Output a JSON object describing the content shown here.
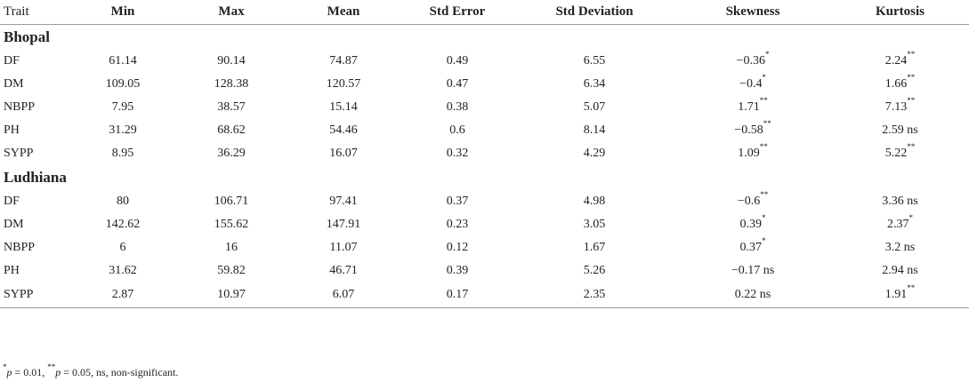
{
  "columns": [
    "Trait",
    "Min",
    "Max",
    "Mean",
    "Std Error",
    "Std Deviation",
    "Skewness",
    "Kurtosis"
  ],
  "groups": [
    {
      "name": "Bhopal",
      "rows": [
        {
          "trait": "DF",
          "min": "61.14",
          "max": "90.14",
          "mean": "74.87",
          "std_error": "0.49",
          "std_dev": "6.55",
          "skew": "−0.36",
          "skew_sig": "*",
          "kurt": "2.24",
          "kurt_sig": "**"
        },
        {
          "trait": "DM",
          "min": "109.05",
          "max": "128.38",
          "mean": "120.57",
          "std_error": "0.47",
          "std_dev": "6.34",
          "skew": "−0.4",
          "skew_sig": "*",
          "kurt": "1.66",
          "kurt_sig": "**"
        },
        {
          "trait": "NBPP",
          "min": "7.95",
          "max": "38.57",
          "mean": "15.14",
          "std_error": "0.38",
          "std_dev": "5.07",
          "skew": "1.71",
          "skew_sig": "**",
          "kurt": "7.13",
          "kurt_sig": "**"
        },
        {
          "trait": "PH",
          "min": "31.29",
          "max": "68.62",
          "mean": "54.46",
          "std_error": "0.6",
          "std_dev": "8.14",
          "skew": "−0.58",
          "skew_sig": "**",
          "kurt": "2.59 ns",
          "kurt_sig": ""
        },
        {
          "trait": "SYPP",
          "min": "8.95",
          "max": "36.29",
          "mean": "16.07",
          "std_error": "0.32",
          "std_dev": "4.29",
          "skew": "1.09",
          "skew_sig": "**",
          "kurt": "5.22",
          "kurt_sig": "**"
        }
      ]
    },
    {
      "name": "Ludhiana",
      "rows": [
        {
          "trait": "DF",
          "min": "80",
          "max": "106.71",
          "mean": "97.41",
          "std_error": "0.37",
          "std_dev": "4.98",
          "skew": "−0.6",
          "skew_sig": "**",
          "kurt": "3.36 ns",
          "kurt_sig": ""
        },
        {
          "trait": "DM",
          "min": "142.62",
          "max": "155.62",
          "mean": "147.91",
          "std_error": "0.23",
          "std_dev": "3.05",
          "skew": "0.39",
          "skew_sig": "*",
          "kurt": "2.37",
          "kurt_sig": "*"
        },
        {
          "trait": "NBPP",
          "min": "6",
          "max": "16",
          "mean": "11.07",
          "std_error": "0.12",
          "std_dev": "1.67",
          "skew": "0.37",
          "skew_sig": "*",
          "kurt": "3.2 ns",
          "kurt_sig": ""
        },
        {
          "trait": "PH",
          "min": "31.62",
          "max": "59.82",
          "mean": "46.71",
          "std_error": "0.39",
          "std_dev": "5.26",
          "skew": "−0.17 ns",
          "skew_sig": "",
          "kurt": "2.94 ns",
          "kurt_sig": ""
        },
        {
          "trait": "SYPP",
          "min": "2.87",
          "max": "10.97",
          "mean": "6.07",
          "std_error": "0.17",
          "std_dev": "2.35",
          "skew": "0.22 ns",
          "skew_sig": "",
          "kurt": "1.91",
          "kurt_sig": "**"
        }
      ]
    }
  ],
  "footnote": {
    "m1": "*",
    "p1": "p",
    "t1": " = 0.01, ",
    "m2": "**",
    "p2": "p",
    "t2": " = 0.05, ns, non-significant."
  }
}
